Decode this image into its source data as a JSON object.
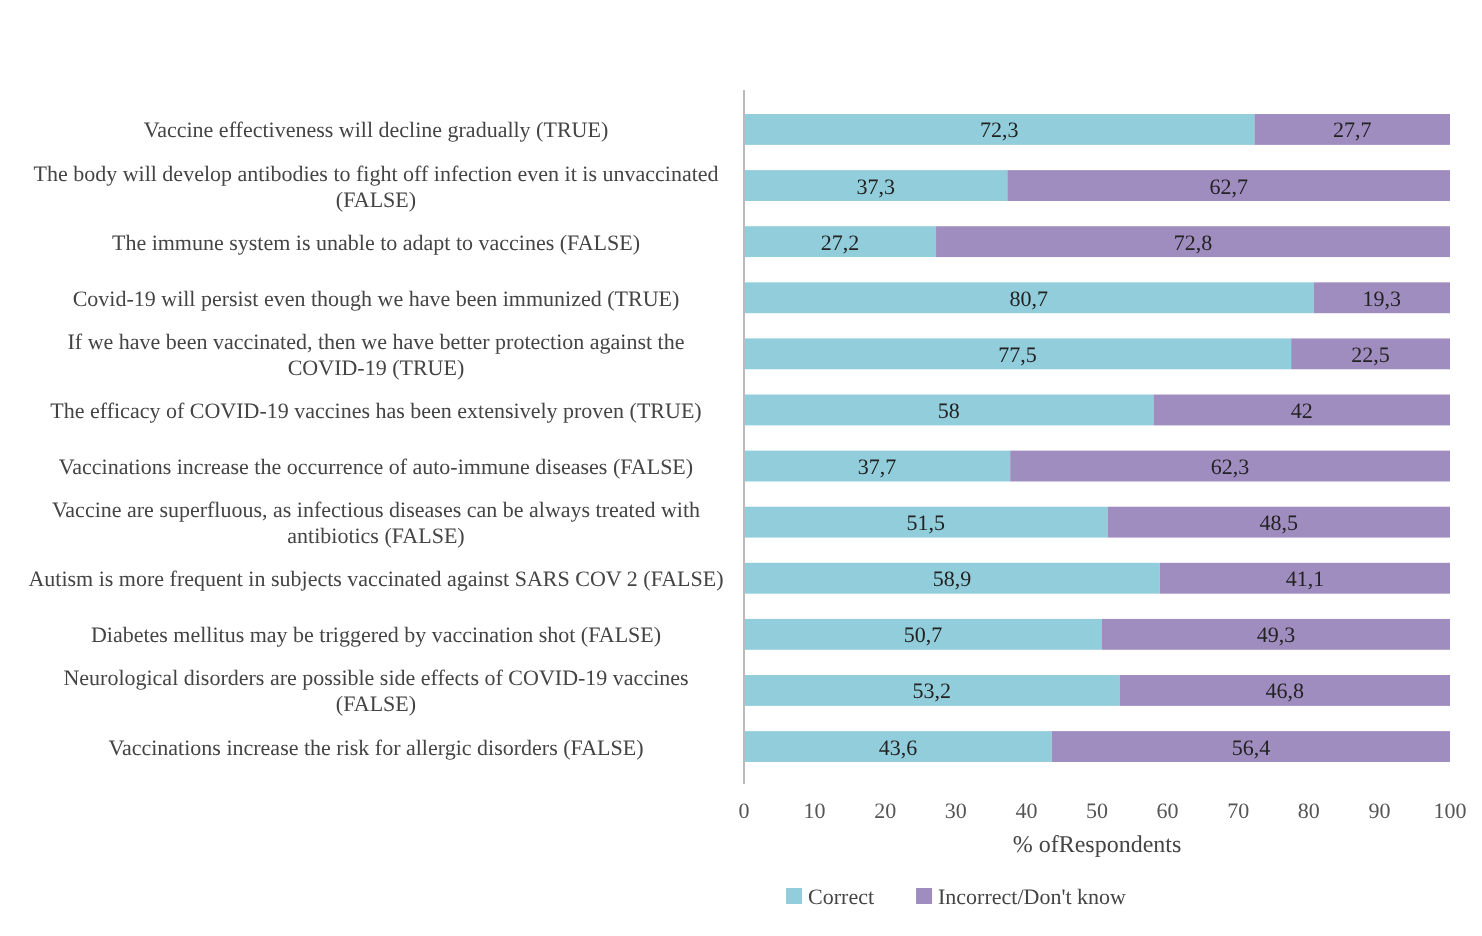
{
  "chart_data": {
    "type": "bar",
    "orientation": "horizontal",
    "stacked": true,
    "xlabel": "% ofRespondents",
    "xlim": [
      0,
      100
    ],
    "xticks": [
      0,
      10,
      20,
      30,
      40,
      50,
      60,
      70,
      80,
      90,
      100
    ],
    "legend": "bottom",
    "grid": false,
    "categories": [
      "Vaccine effectiveness will decline gradually (TRUE)",
      "The body will develop antibodies to fight off infection even it is unvaccinated (FALSE)",
      "The immune system is unable to adapt to vaccines (FALSE)",
      "Covid-19 will persist even though we have been immunized (TRUE)",
      "If we have been vaccinated, then we have better protection against the COVID-19 (TRUE)",
      "The efficacy of COVID-19 vaccines has been extensively proven  (TRUE)",
      "Vaccinations increase the occurrence of auto-immune diseases (FALSE)",
      "Vaccine are superfluous, as infectious diseases can be always treated with antibiotics (FALSE)",
      "Autism is more frequent in subjects vaccinated against SARS COV 2 (FALSE)",
      "Diabetes mellitus may be triggered by vaccination shot (FALSE)",
      "Neurological disorders are possible side effects of COVID-19 vaccines (FALSE)",
      "Vaccinations increase the risk for allergic disorders (FALSE)"
    ],
    "series": [
      {
        "name": "Correct",
        "color": "#92cddc",
        "values": [
          72.3,
          37.3,
          27.2,
          80.7,
          77.5,
          58,
          37.7,
          51.5,
          58.9,
          50.7,
          53.2,
          43.6
        ],
        "value_labels": [
          "72,3",
          "37,3",
          "27,2",
          "80,7",
          "77,5",
          "58",
          "37,7",
          "51,5",
          "58,9",
          "50,7",
          "53,2",
          "43,6"
        ]
      },
      {
        "name": "Incorrect/Don't know",
        "color": "#a08dc0",
        "values": [
          27.7,
          62.7,
          72.8,
          19.3,
          22.5,
          42,
          62.3,
          48.5,
          41.1,
          49.3,
          46.8,
          56.4
        ],
        "value_labels": [
          "27,7",
          "62,7",
          "72,8",
          "19,3",
          "22,5",
          "42",
          "62,3",
          "48,5",
          "41,1",
          "49,3",
          "46,8",
          "56,4"
        ]
      }
    ]
  }
}
